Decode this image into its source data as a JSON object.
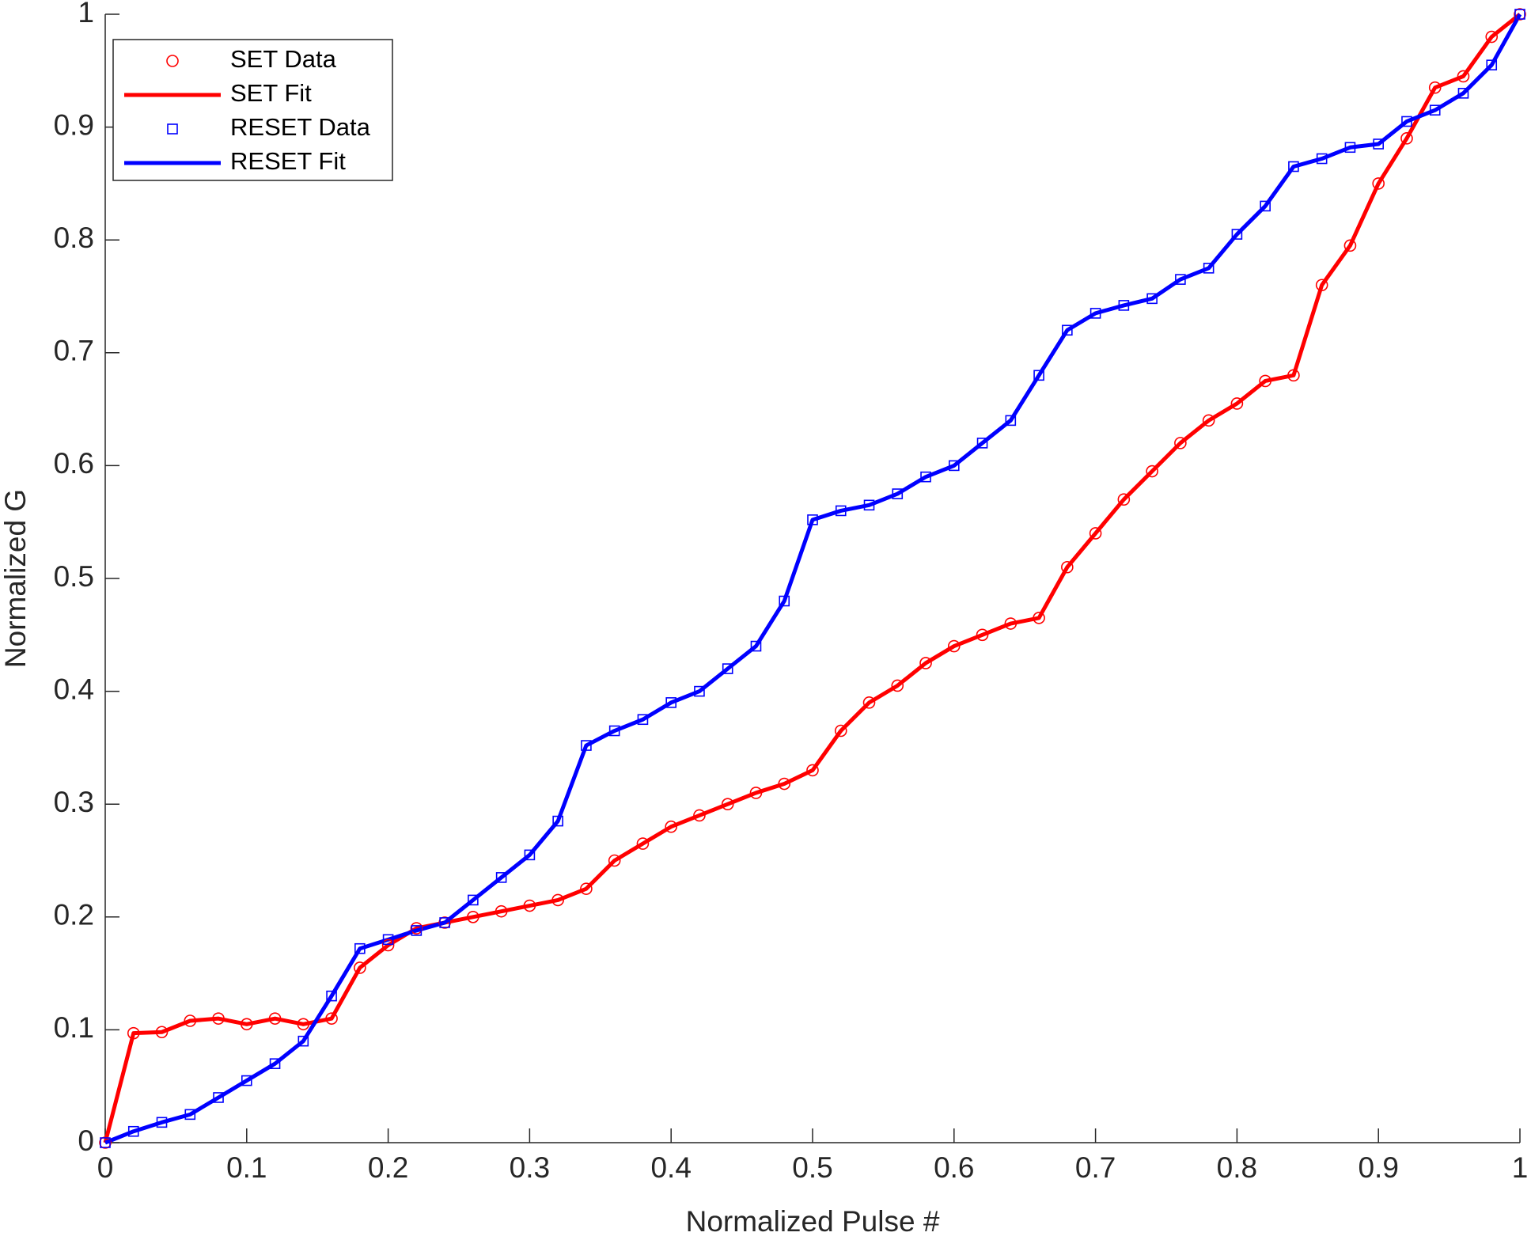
{
  "chart_data": {
    "type": "line",
    "x_label": "Normalized Pulse #",
    "y_label": "Normalized G",
    "x": [
      0,
      0.02,
      0.04,
      0.06,
      0.08,
      0.1,
      0.12,
      0.14,
      0.16,
      0.18,
      0.2,
      0.22,
      0.24,
      0.26,
      0.28,
      0.3,
      0.32,
      0.34,
      0.36,
      0.38,
      0.4,
      0.42,
      0.44,
      0.46,
      0.48,
      0.5,
      0.52,
      0.54,
      0.56,
      0.58,
      0.6,
      0.62,
      0.64,
      0.66,
      0.68,
      0.7,
      0.72,
      0.74,
      0.76,
      0.78,
      0.8,
      0.82,
      0.84,
      0.86,
      0.88,
      0.9,
      0.92,
      0.94,
      0.96,
      0.98,
      1
    ],
    "series": [
      {
        "name": "SET Data",
        "color": "#ff0000",
        "style": "circle",
        "values": [
          0,
          0.097,
          0.098,
          0.108,
          0.11,
          0.105,
          0.11,
          0.105,
          0.11,
          0.155,
          0.175,
          0.19,
          0.195,
          0.2,
          0.205,
          0.21,
          0.215,
          0.225,
          0.25,
          0.265,
          0.28,
          0.29,
          0.3,
          0.31,
          0.318,
          0.33,
          0.365,
          0.39,
          0.405,
          0.425,
          0.44,
          0.45,
          0.46,
          0.465,
          0.51,
          0.54,
          0.57,
          0.595,
          0.62,
          0.64,
          0.655,
          0.675,
          0.68,
          0.76,
          0.795,
          0.85,
          0.89,
          0.935,
          0.945,
          0.98,
          1
        ]
      },
      {
        "name": "SET Fit",
        "color": "#ff0000",
        "style": "line",
        "values": [
          0,
          0.097,
          0.098,
          0.108,
          0.11,
          0.105,
          0.11,
          0.105,
          0.11,
          0.155,
          0.175,
          0.19,
          0.195,
          0.2,
          0.205,
          0.21,
          0.215,
          0.225,
          0.25,
          0.265,
          0.28,
          0.29,
          0.3,
          0.31,
          0.318,
          0.33,
          0.365,
          0.39,
          0.405,
          0.425,
          0.44,
          0.45,
          0.46,
          0.465,
          0.51,
          0.54,
          0.57,
          0.595,
          0.62,
          0.64,
          0.655,
          0.675,
          0.68,
          0.76,
          0.795,
          0.85,
          0.89,
          0.935,
          0.945,
          0.98,
          1
        ]
      },
      {
        "name": "RESET Data",
        "color": "#0000ff",
        "style": "square",
        "values": [
          0,
          0.01,
          0.018,
          0.025,
          0.04,
          0.055,
          0.07,
          0.09,
          0.13,
          0.172,
          0.18,
          0.188,
          0.195,
          0.215,
          0.235,
          0.255,
          0.285,
          0.352,
          0.365,
          0.375,
          0.39,
          0.4,
          0.42,
          0.44,
          0.48,
          0.552,
          0.56,
          0.565,
          0.575,
          0.59,
          0.6,
          0.62,
          0.64,
          0.68,
          0.72,
          0.735,
          0.742,
          0.748,
          0.765,
          0.775,
          0.805,
          0.83,
          0.865,
          0.872,
          0.882,
          0.885,
          0.905,
          0.915,
          0.93,
          0.955,
          1
        ]
      },
      {
        "name": "RESET Fit",
        "color": "#0000ff",
        "style": "line",
        "values": [
          0,
          0.01,
          0.018,
          0.025,
          0.04,
          0.055,
          0.07,
          0.09,
          0.13,
          0.172,
          0.18,
          0.188,
          0.195,
          0.215,
          0.235,
          0.255,
          0.285,
          0.352,
          0.365,
          0.375,
          0.39,
          0.4,
          0.42,
          0.44,
          0.48,
          0.552,
          0.56,
          0.565,
          0.575,
          0.59,
          0.6,
          0.62,
          0.64,
          0.68,
          0.72,
          0.735,
          0.742,
          0.748,
          0.765,
          0.775,
          0.805,
          0.83,
          0.865,
          0.872,
          0.882,
          0.885,
          0.905,
          0.915,
          0.93,
          0.955,
          1
        ]
      }
    ],
    "xlim": [
      0,
      1
    ],
    "ylim": [
      0,
      1
    ],
    "xticks": [
      0,
      0.1,
      0.2,
      0.3,
      0.4,
      0.5,
      0.6,
      0.7,
      0.8,
      0.9,
      1
    ],
    "yticks": [
      0,
      0.1,
      0.2,
      0.3,
      0.4,
      0.5,
      0.6,
      0.7,
      0.8,
      0.9,
      1
    ],
    "legend": "upper-left",
    "grid": false
  }
}
